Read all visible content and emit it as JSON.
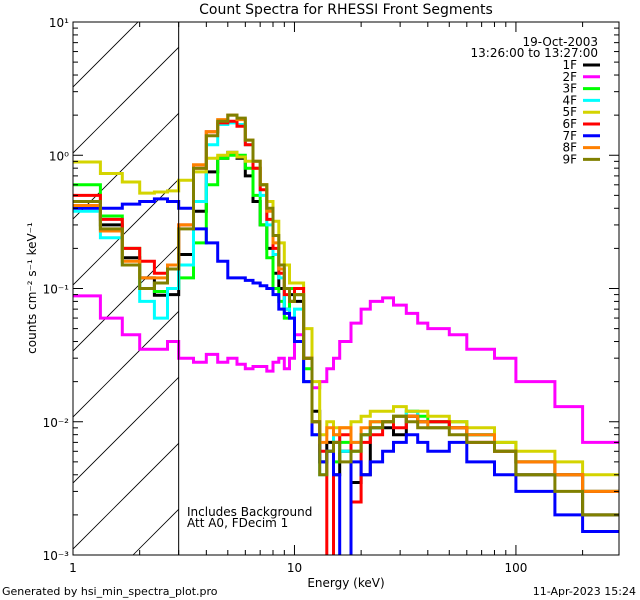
{
  "chart_data": {
    "type": "line",
    "title": "Count Spectra for RHESSI Front Segments",
    "xlabel": "Energy (keV)",
    "ylabel": "counts cm⁻² s⁻¹ keV⁻¹",
    "xscale": "log",
    "yscale": "log",
    "xlim": [
      1,
      292
    ],
    "ylim": [
      0.001,
      10
    ],
    "xticks": [
      {
        "value": 1,
        "label": "1"
      },
      {
        "value": 10,
        "label": "10"
      },
      {
        "value": 100,
        "label": "100"
      }
    ],
    "yticks": [
      {
        "value": 10,
        "label": "10¹"
      },
      {
        "value": 1,
        "label": "10⁰"
      },
      {
        "value": 0.1,
        "label": "10⁻¹"
      },
      {
        "value": 0.01,
        "label": "10⁻²"
      },
      {
        "value": 0.001,
        "label": "10⁻³"
      }
    ],
    "hatched_region_keV": [
      1,
      3
    ],
    "date": "19-Oct-2003",
    "time_range": "13:26:00 to 13:27:00",
    "annotations": [
      "Includes Background",
      "Att A0, FDecim 1"
    ],
    "legend_position": "top-right",
    "energy_edges": [
      1,
      1.33,
      1.67,
      2,
      2.33,
      2.67,
      3,
      3.5,
      4,
      4.5,
      5,
      5.5,
      6,
      6.5,
      7,
      7.5,
      8,
      8.5,
      9,
      9.5,
      10,
      11,
      12,
      13,
      14,
      15,
      16,
      18,
      20,
      22,
      25,
      28,
      32,
      36,
      40,
      50,
      60,
      80,
      100,
      150,
      200,
      292
    ],
    "series": [
      {
        "name": "1F",
        "color": "#000000",
        "values": [
          0.45,
          0.3,
          0.17,
          0.12,
          0.089,
          0.09,
          0.18,
          0.38,
          0.75,
          0.95,
          1.05,
          0.95,
          0.7,
          0.45,
          0.3,
          0.2,
          0.13,
          0.1,
          0.07,
          0.09,
          0.08,
          0.03,
          0.012,
          0.005,
          0.007,
          0.004,
          0.006,
          0.0035,
          0.004,
          0.009,
          0.009,
          0.008,
          0.011,
          0.01,
          0.01,
          0.009,
          0.008,
          0.006,
          0.004,
          0.004,
          0.002
        ]
      },
      {
        "name": "2F",
        "color": "#ff00ff",
        "values": [
          0.088,
          0.06,
          0.045,
          0.035,
          0.035,
          0.04,
          0.03,
          0.028,
          0.032,
          0.028,
          0.03,
          0.027,
          0.025,
          0.026,
          0.026,
          0.024,
          0.028,
          0.03,
          0.025,
          0.03,
          0.045,
          0.02,
          0.018,
          0.02,
          0.025,
          0.03,
          0.04,
          0.055,
          0.07,
          0.08,
          0.085,
          0.075,
          0.065,
          0.055,
          0.05,
          0.045,
          0.035,
          0.03,
          0.02,
          0.013,
          0.007
        ]
      },
      {
        "name": "3F",
        "color": "#00ff00",
        "values": [
          0.6,
          0.35,
          0.2,
          0.1,
          0.095,
          0.1,
          0.12,
          0.22,
          0.6,
          0.95,
          1.0,
          1.0,
          0.8,
          0.5,
          0.3,
          0.17,
          0.1,
          0.08,
          0.06,
          0.1,
          0.09,
          0.025,
          0.01,
          0.005,
          0.006,
          0.005,
          0.007,
          0.006,
          0.008,
          0.01,
          0.01,
          0.011,
          0.012,
          0.011,
          0.01,
          0.01,
          0.008,
          0.007,
          0.005,
          0.004,
          0.003
        ]
      },
      {
        "name": "4F",
        "color": "#00ffff",
        "values": [
          0.38,
          0.24,
          0.15,
          0.08,
          0.06,
          0.1,
          0.15,
          0.45,
          1.2,
          1.7,
          1.75,
          1.7,
          1.2,
          0.8,
          0.5,
          0.3,
          0.18,
          0.12,
          0.07,
          0.06,
          0.07,
          0.02,
          0.008,
          0.004,
          0.006,
          0.008,
          0.006,
          0.007,
          0.008,
          0.009,
          0.01,
          0.011,
          0.012,
          0.01,
          0.009,
          0.009,
          0.008,
          0.006,
          0.005,
          0.004,
          0.003
        ]
      },
      {
        "name": "5F",
        "color": "#d4d400",
        "values": [
          0.89,
          0.73,
          0.63,
          0.52,
          0.53,
          0.54,
          0.65,
          0.75,
          0.95,
          1.0,
          1.05,
          0.97,
          0.9,
          0.8,
          0.6,
          0.45,
          0.32,
          0.22,
          0.15,
          0.11,
          0.11,
          0.05,
          0.02,
          0.008,
          0.01,
          0.009,
          0.009,
          0.01,
          0.011,
          0.012,
          0.012,
          0.013,
          0.012,
          0.012,
          0.011,
          0.01,
          0.009,
          0.007,
          0.006,
          0.005,
          0.004
        ]
      },
      {
        "name": "6F",
        "color": "#ff0000",
        "values": [
          0.5,
          0.33,
          0.2,
          0.16,
          0.13,
          0.15,
          0.3,
          0.8,
          1.5,
          1.75,
          1.8,
          1.65,
          1.2,
          0.8,
          0.55,
          0.33,
          0.2,
          0.13,
          0.09,
          0.08,
          0.1,
          0.03,
          0.01,
          0.006,
          0.0009,
          0.007,
          0.008,
          0.0025,
          0.007,
          0.008,
          0.01,
          0.009,
          0.011,
          0.01,
          0.01,
          0.009,
          0.007,
          0.006,
          0.005,
          0.004,
          0.003
        ]
      },
      {
        "name": "7F",
        "color": "#0000ff",
        "values": [
          0.4,
          0.4,
          0.43,
          0.45,
          0.47,
          0.45,
          0.4,
          0.28,
          0.22,
          0.16,
          0.12,
          0.12,
          0.115,
          0.11,
          0.105,
          0.1,
          0.09,
          0.07,
          0.065,
          0.06,
          0.04,
          0.02,
          0.008,
          0.005,
          0.006,
          0.004,
          0.0009,
          0.005,
          0.004,
          0.005,
          0.006,
          0.007,
          0.008,
          0.007,
          0.006,
          0.007,
          0.005,
          0.004,
          0.003,
          0.002,
          0.0015
        ]
      },
      {
        "name": "8F",
        "color": "#ff8000",
        "values": [
          0.42,
          0.27,
          0.16,
          0.12,
          0.12,
          0.15,
          0.3,
          0.85,
          1.5,
          1.85,
          2.0,
          1.85,
          1.3,
          0.9,
          0.6,
          0.38,
          0.22,
          0.14,
          0.1,
          0.08,
          0.09,
          0.03,
          0.01,
          0.007,
          0.009,
          0.008,
          0.009,
          0.007,
          0.009,
          0.01,
          0.01,
          0.011,
          0.011,
          0.01,
          0.009,
          0.009,
          0.008,
          0.006,
          0.005,
          0.004,
          0.003
        ]
      },
      {
        "name": "9F",
        "color": "#808000",
        "values": [
          0.45,
          0.28,
          0.15,
          0.1,
          0.11,
          0.14,
          0.28,
          0.8,
          1.4,
          1.8,
          2.0,
          1.9,
          1.3,
          0.9,
          0.6,
          0.4,
          0.25,
          0.15,
          0.1,
          0.08,
          0.09,
          0.03,
          0.01,
          0.004,
          0.006,
          0.007,
          0.005,
          0.006,
          0.008,
          0.009,
          0.01,
          0.011,
          0.01,
          0.009,
          0.009,
          0.008,
          0.007,
          0.006,
          0.004,
          0.003,
          0.002
        ]
      }
    ]
  },
  "footer": {
    "generated_by": "Generated by hsi_min_spectra_plot.pro",
    "timestamp": "11-Apr-2023 15:24"
  }
}
